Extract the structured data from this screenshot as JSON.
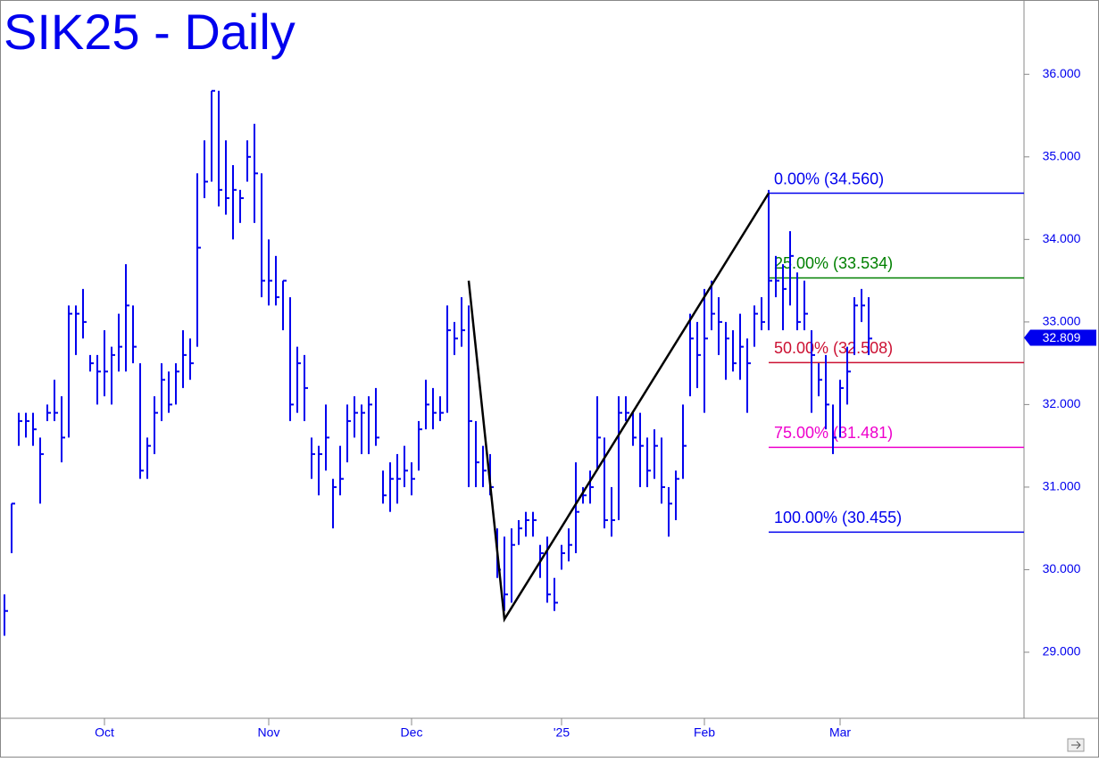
{
  "chart_data": {
    "type": "ohlc",
    "title": "SIK25 - Daily",
    "color": "#0000ee",
    "categories": [
      null,
      null,
      null,
      null,
      null,
      null,
      null,
      null,
      null,
      null,
      null,
      null,
      null,
      null,
      "Oct",
      null,
      null,
      null,
      null,
      null,
      null,
      null,
      null,
      null,
      null,
      null,
      null,
      null,
      null,
      null,
      null,
      null,
      null,
      null,
      null,
      null,
      null,
      "Nov",
      null,
      null,
      null,
      null,
      null,
      null,
      null,
      null,
      null,
      null,
      null,
      null,
      null,
      null,
      null,
      null,
      null,
      null,
      null,
      "Dec",
      null,
      null,
      null,
      null,
      null,
      null,
      null,
      null,
      null,
      null,
      null,
      null,
      null,
      null,
      null,
      null,
      null,
      null,
      null,
      null,
      "'25",
      null,
      null,
      null,
      null,
      null,
      null,
      null,
      null,
      null,
      null,
      null,
      null,
      null,
      null,
      null,
      null,
      null,
      null,
      null,
      "Feb",
      null,
      null,
      null,
      null,
      null,
      null,
      null,
      null,
      null,
      null,
      null,
      null,
      null,
      null,
      null,
      null,
      null,
      null,
      "Mar",
      null,
      null,
      null,
      null
    ],
    "high": [
      29.7,
      30.8,
      31.9,
      31.9,
      31.9,
      31.6,
      32.0,
      32.3,
      32.1,
      33.2,
      33.2,
      33.4,
      32.6,
      32.6,
      32.9,
      32.7,
      33.1,
      33.7,
      33.2,
      32.5,
      31.6,
      32.1,
      32.5,
      32.4,
      32.5,
      32.9,
      32.8,
      34.8,
      35.2,
      35.8,
      35.8,
      35.2,
      34.9,
      34.6,
      35.2,
      35.4,
      34.8,
      34.0,
      33.8,
      33.5,
      33.3,
      32.7,
      32.6,
      31.6,
      31.5,
      32.0,
      31.1,
      31.5,
      32.0,
      32.1,
      32.0,
      32.1,
      32.2,
      31.2,
      31.3,
      31.4,
      31.5,
      31.3,
      31.8,
      32.3,
      32.2,
      32.1,
      33.2,
      33.0,
      33.3,
      33.2,
      31.8,
      31.5,
      31.4,
      30.5,
      30.4,
      30.5,
      30.6,
      30.7,
      30.7,
      30.3,
      30.4,
      29.9,
      30.3,
      30.5,
      31.3,
      31.0,
      31.2,
      32.1,
      31.6,
      31.0,
      32.1,
      32.1,
      31.9,
      31.9,
      31.6,
      31.7,
      31.6,
      31.0,
      31.2,
      32.0,
      33.1,
      33.0,
      33.4,
      33.5,
      33.3,
      33.0,
      32.9,
      33.1,
      32.8,
      33.2,
      33.3,
      34.6,
      33.8,
      33.7,
      34.1,
      33.6,
      33.5,
      32.9,
      32.5,
      32.6,
      32.0,
      32.3,
      32.7,
      33.3,
      33.4,
      33.3
    ],
    "low": [
      29.2,
      30.2,
      31.5,
      31.6,
      31.5,
      30.8,
      31.8,
      31.8,
      31.3,
      31.6,
      32.6,
      32.8,
      32.4,
      32.0,
      32.1,
      32.0,
      32.4,
      32.4,
      32.5,
      31.1,
      31.1,
      31.4,
      31.8,
      31.9,
      32.0,
      32.2,
      32.3,
      32.7,
      34.5,
      34.7,
      34.4,
      34.3,
      34.0,
      34.2,
      34.7,
      34.2,
      33.3,
      33.2,
      33.2,
      32.9,
      31.8,
      31.9,
      31.8,
      31.1,
      30.9,
      31.2,
      30.5,
      30.9,
      31.3,
      31.6,
      31.4,
      31.4,
      31.5,
      30.8,
      30.7,
      30.8,
      31.0,
      30.9,
      31.2,
      31.7,
      31.7,
      31.8,
      31.9,
      32.6,
      32.7,
      31.0,
      31.0,
      31.0,
      30.9,
      29.9,
      29.5,
      29.6,
      30.3,
      30.4,
      30.4,
      29.9,
      29.6,
      29.5,
      30.0,
      30.1,
      30.2,
      30.8,
      30.8,
      31.2,
      30.5,
      30.4,
      30.6,
      31.8,
      31.5,
      31.0,
      31.0,
      31.1,
      30.8,
      30.4,
      30.6,
      31.1,
      32.1,
      32.2,
      31.9,
      32.9,
      32.6,
      32.3,
      32.4,
      32.3,
      31.9,
      32.7,
      32.9,
      32.9,
      33.3,
      32.9,
      33.2,
      32.9,
      32.9,
      31.9,
      32.1,
      31.7,
      31.4,
      31.6,
      32.0,
      32.6,
      33.0,
      32.6
    ],
    "close": [
      29.5,
      30.8,
      31.8,
      31.8,
      31.7,
      31.4,
      31.9,
      31.9,
      31.6,
      33.1,
      33.1,
      33.0,
      32.5,
      32.4,
      32.4,
      32.6,
      32.7,
      33.2,
      32.7,
      31.2,
      31.5,
      31.9,
      32.3,
      32.0,
      32.4,
      32.6,
      32.5,
      33.9,
      34.7,
      35.8,
      34.6,
      34.5,
      34.6,
      34.5,
      35.0,
      34.8,
      33.5,
      33.5,
      33.3,
      33.5,
      32.0,
      32.5,
      32.2,
      31.4,
      31.4,
      31.6,
      31.0,
      31.1,
      31.8,
      31.9,
      31.9,
      32.0,
      31.6,
      30.9,
      31.1,
      31.1,
      31.2,
      31.1,
      31.7,
      32.0,
      31.9,
      31.9,
      32.9,
      32.8,
      32.9,
      31.8,
      31.3,
      31.2,
      31.0,
      30.0,
      29.7,
      30.3,
      30.5,
      30.6,
      30.6,
      30.2,
      29.7,
      29.6,
      30.2,
      30.3,
      30.7,
      30.9,
      31.0,
      31.6,
      30.6,
      30.6,
      31.9,
      31.9,
      31.6,
      31.5,
      31.2,
      31.5,
      31.0,
      30.8,
      31.1,
      31.5,
      32.8,
      32.6,
      32.8,
      33.1,
      33.0,
      32.8,
      32.5,
      32.7,
      32.5,
      33.1,
      33.0,
      33.5,
      33.5,
      33.4,
      33.8,
      33.0,
      33.1,
      32.6,
      32.3,
      32.0,
      31.6,
      32.2,
      32.4,
      33.2,
      33.2,
      32.8
    ],
    "ylim": [
      28.2,
      36.9
    ],
    "yticks": [
      {
        "value": 29,
        "label": "29.000"
      },
      {
        "value": 30,
        "label": "30.000"
      },
      {
        "value": 31,
        "label": "31.000"
      },
      {
        "value": 32,
        "label": "32.000"
      },
      {
        "value": 33,
        "label": "33.000"
      },
      {
        "value": 34,
        "label": "34.000"
      },
      {
        "value": 35,
        "label": "35.000"
      },
      {
        "value": 36,
        "label": "36.000"
      }
    ],
    "last_price": 32.809,
    "swing": {
      "color": "#000000",
      "x": [
        65,
        70,
        107
      ],
      "values": [
        33.5,
        29.4,
        34.56
      ]
    },
    "fib_levels": [
      {
        "label": "0.00% (34.560)",
        "value": 34.56,
        "color": "#0000ee"
      },
      {
        "label": "25.00% (33.534)",
        "value": 33.534,
        "color": "#008000"
      },
      {
        "label": "50.00% (32.508)",
        "value": 32.508,
        "color": "#cc1133"
      },
      {
        "label": "75.00% (31.481)",
        "value": 31.481,
        "color": "#ee00cc"
      },
      {
        "label": "100.00% (30.455)",
        "value": 30.455,
        "color": "#0000ee"
      }
    ],
    "fib_start": 107
  }
}
